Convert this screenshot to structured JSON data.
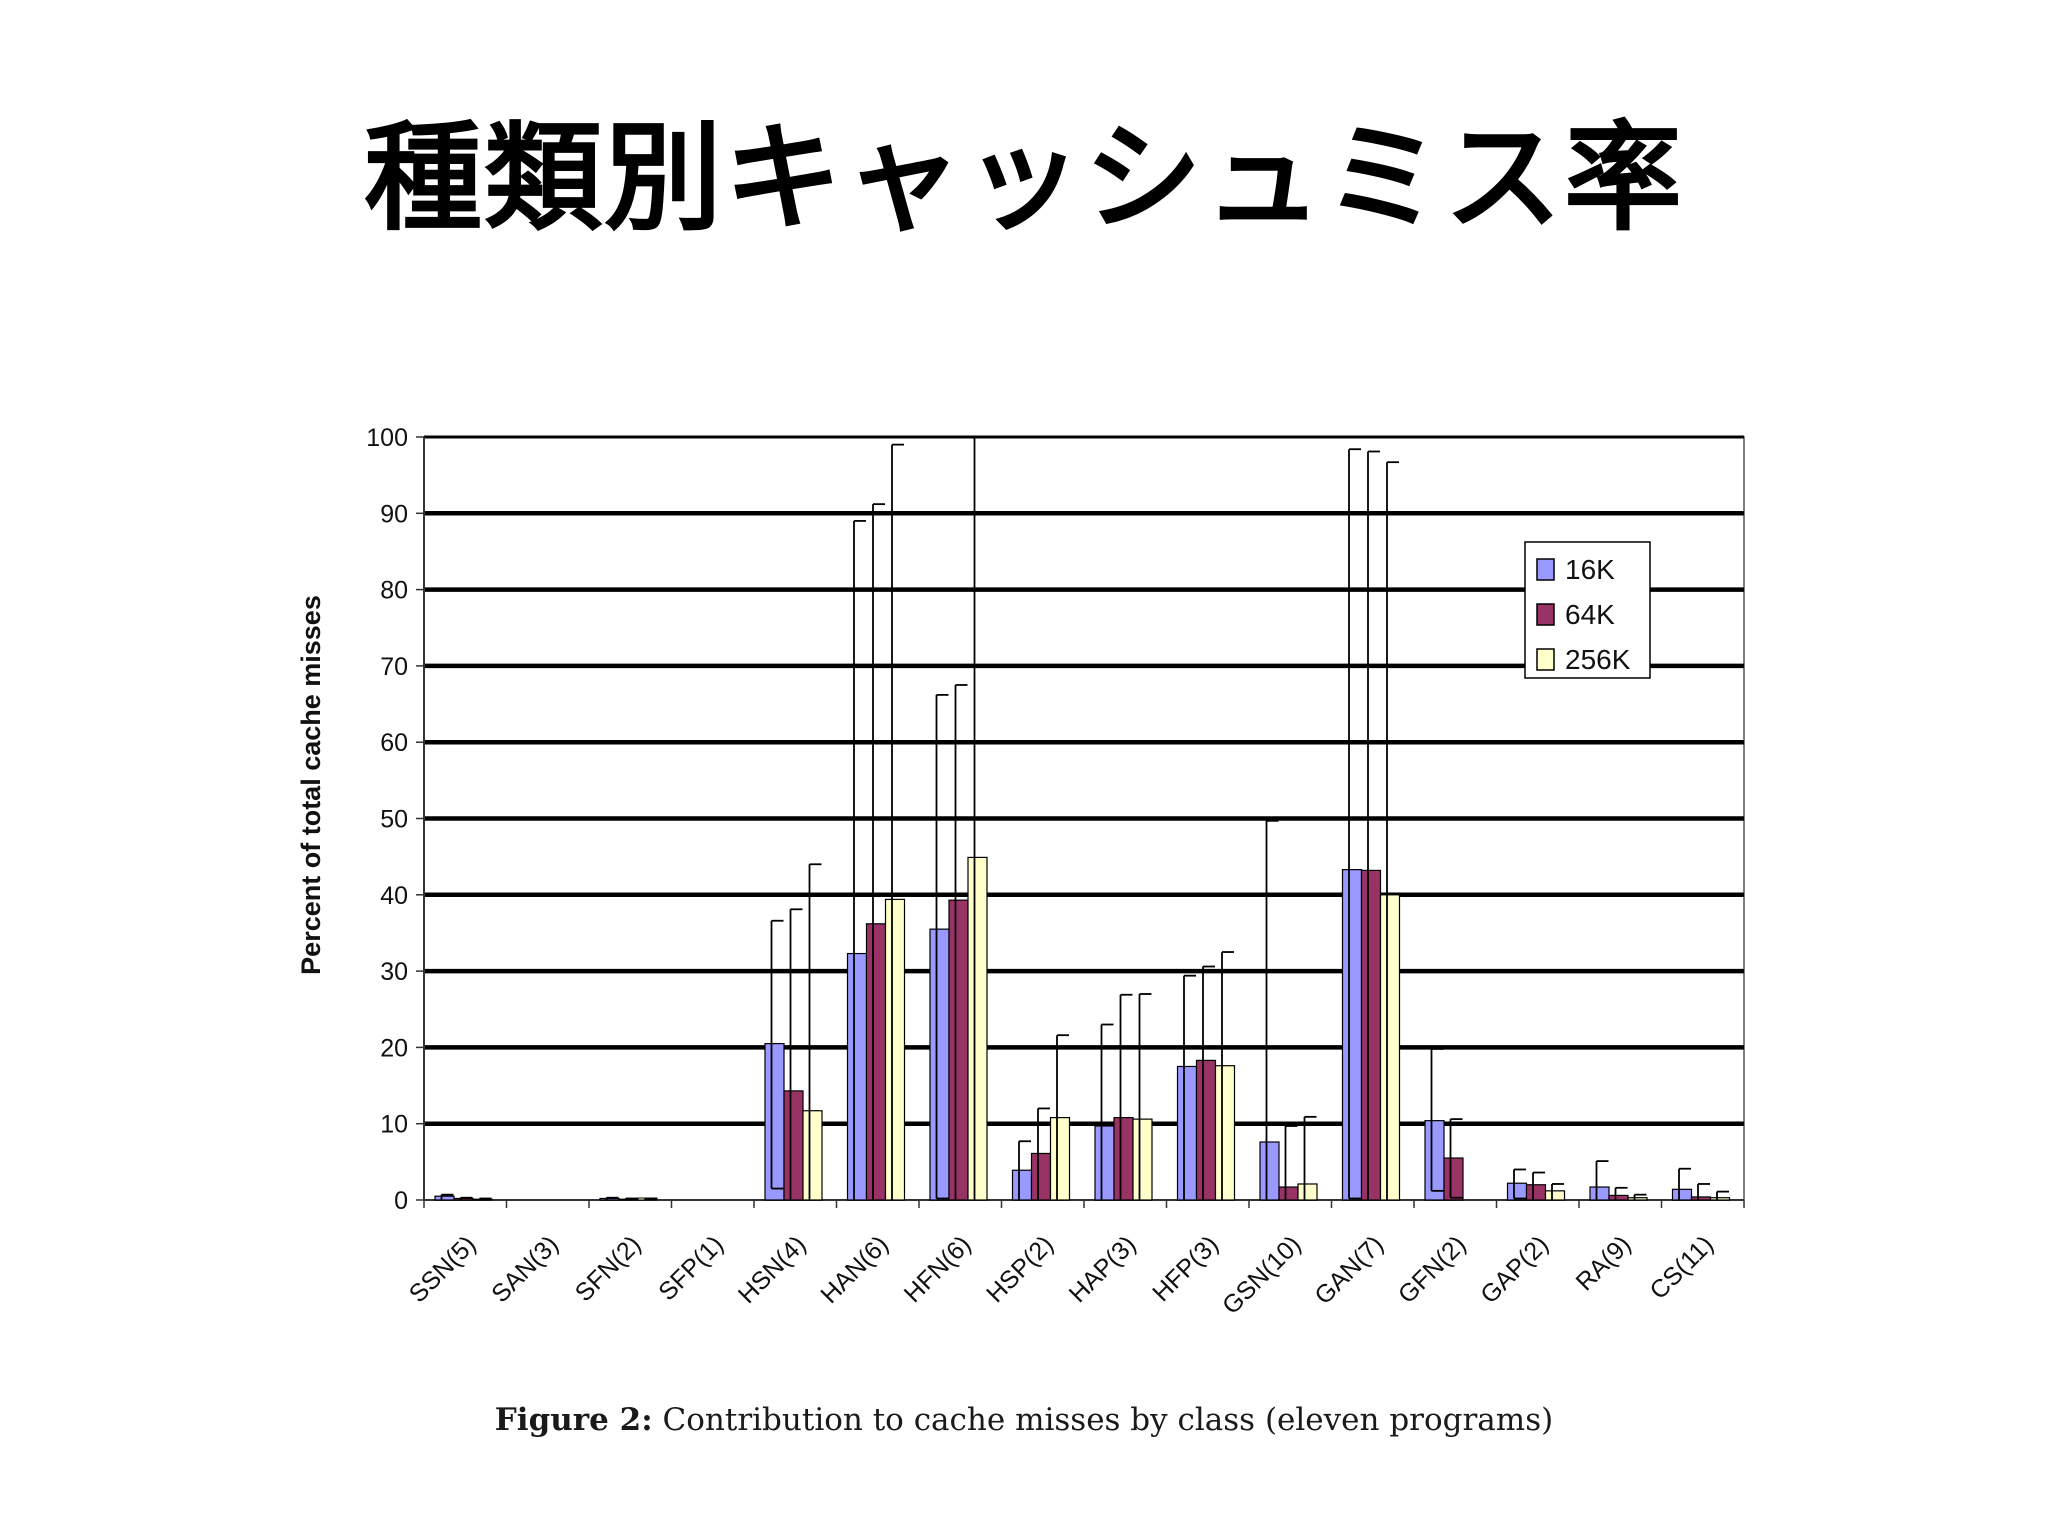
{
  "slide": {
    "title": "種類別キャッシュミス率"
  },
  "caption": {
    "prefix": "Figure 2:",
    "text": "Contribution to cache misses by class (eleven programs)"
  },
  "chart_data": {
    "type": "bar",
    "title": "",
    "xlabel": "",
    "ylabel": "Percent of total cache misses",
    "ylim": [
      0,
      100
    ],
    "yticks": [
      0,
      10,
      20,
      30,
      40,
      50,
      60,
      70,
      80,
      90,
      100
    ],
    "grid": true,
    "legend_position": "top-right",
    "categories": [
      "SSN(5)",
      "SAN(3)",
      "SFN(2)",
      "SFP(1)",
      "HSN(4)",
      "HAN(6)",
      "HFN(6)",
      "HSP(2)",
      "HAP(3)",
      "HFP(3)",
      "GSN(10)",
      "GAN(7)",
      "GFN(2)",
      "GAP(2)",
      "RA(9)",
      "CS(11)"
    ],
    "series": [
      {
        "name": "16K",
        "color": "#9999ff",
        "values": [
          0.5,
          0,
          0.2,
          0,
          20.5,
          32.3,
          35.5,
          3.9,
          9.7,
          17.5,
          7.6,
          43.3,
          10.4,
          2.2,
          1.7,
          1.4
        ],
        "err_low": [
          0,
          0,
          0,
          0,
          1.5,
          0,
          0.2,
          0,
          0,
          0,
          0,
          0.2,
          1.2,
          0.2,
          0,
          0
        ],
        "err_high": [
          0.7,
          0,
          0.3,
          0,
          36.6,
          89.0,
          66.2,
          7.7,
          23.0,
          29.4,
          49.7,
          98.4,
          19.8,
          4.0,
          5.1,
          4.1
        ]
      },
      {
        "name": "64K",
        "color": "#993366",
        "values": [
          0.2,
          0,
          0.1,
          0,
          14.3,
          36.2,
          39.3,
          6.1,
          10.8,
          18.3,
          1.7,
          43.2,
          5.5,
          2.0,
          0.6,
          0.4
        ],
        "err_low": [
          0,
          0,
          0,
          0,
          0,
          0,
          0,
          0,
          0,
          0,
          0,
          0,
          0.3,
          0,
          0,
          0
        ],
        "err_high": [
          0.3,
          0,
          0.2,
          0,
          38.1,
          91.2,
          67.5,
          12.0,
          26.9,
          30.6,
          9.7,
          98.1,
          10.6,
          3.6,
          1.6,
          2.1
        ]
      },
      {
        "name": "256K",
        "color": "#ffffcc",
        "values": [
          0.1,
          0,
          0.05,
          0,
          11.7,
          39.4,
          44.9,
          10.8,
          10.6,
          17.6,
          2.1,
          40.0,
          0,
          1.2,
          0.3,
          0.3
        ],
        "err_low": [
          0,
          0,
          0,
          0,
          0,
          0,
          0,
          0,
          0,
          0,
          0,
          0,
          0,
          0,
          0,
          0
        ],
        "err_high": [
          0.2,
          0,
          0.1,
          0,
          44.0,
          99.0,
          100,
          21.6,
          27.0,
          32.5,
          10.9,
          96.7,
          0,
          2.1,
          0.7,
          1.1
        ]
      }
    ]
  }
}
